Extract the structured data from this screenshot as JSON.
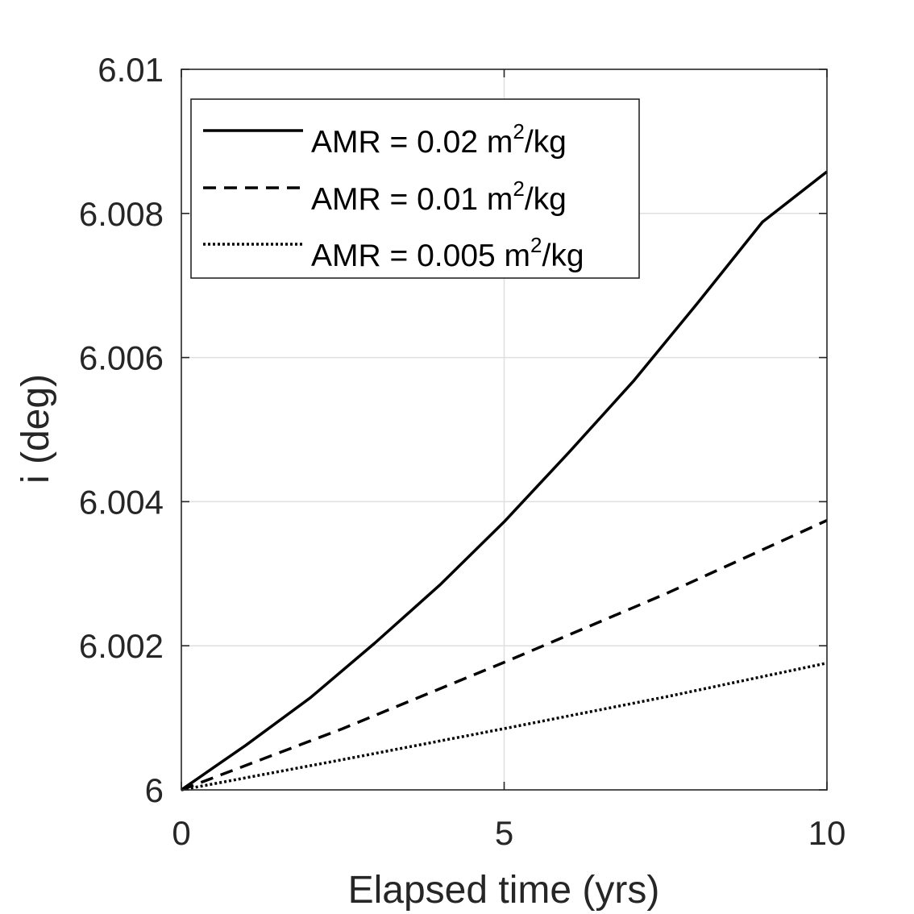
{
  "chart_data": {
    "type": "line",
    "title": "",
    "xlabel": "Elapsed time (yrs)",
    "ylabel": "i (deg)",
    "xlim": [
      0,
      10
    ],
    "ylim": [
      6,
      6.01
    ],
    "xticks": [
      0,
      5,
      10
    ],
    "xtick_labels": [
      "0",
      "5",
      "10"
    ],
    "yticks": [
      6,
      6.002,
      6.004,
      6.006,
      6.008,
      6.01
    ],
    "ytick_labels": [
      "6",
      "6.002",
      "6.004",
      "6.006",
      "6.008",
      "6.01"
    ],
    "grid": true,
    "legend_position": "top-left",
    "colors": {
      "axis": "#262626",
      "grid": "#dfdfdf",
      "series": "#000000"
    },
    "series": [
      {
        "name_main": "AMR = 0.02 m",
        "name_sup": "2",
        "name_tail": "/kg",
        "style": "solid",
        "x": [
          0,
          1,
          2,
          3,
          4,
          5,
          6,
          7,
          8,
          9,
          10
        ],
        "y": [
          6.0,
          6.00062,
          6.00128,
          6.00204,
          6.00284,
          6.00372,
          6.00468,
          6.00567,
          6.00676,
          6.00788,
          6.00858
        ]
      },
      {
        "name_main": "AMR = 0.01 m",
        "name_sup": "2",
        "name_tail": "/kg",
        "style": "dashed",
        "x": [
          0,
          2.5,
          5,
          7.5,
          10
        ],
        "y": [
          6.0,
          6.00085,
          6.00177,
          6.00272,
          6.00374
        ]
      },
      {
        "name_main": "AMR = 0.005 m",
        "name_sup": "2",
        "name_tail": "/kg",
        "style": "dotted",
        "x": [
          0,
          2.5,
          5,
          7.5,
          10
        ],
        "y": [
          6.0,
          6.00042,
          6.00085,
          6.00129,
          6.00176
        ]
      }
    ]
  }
}
